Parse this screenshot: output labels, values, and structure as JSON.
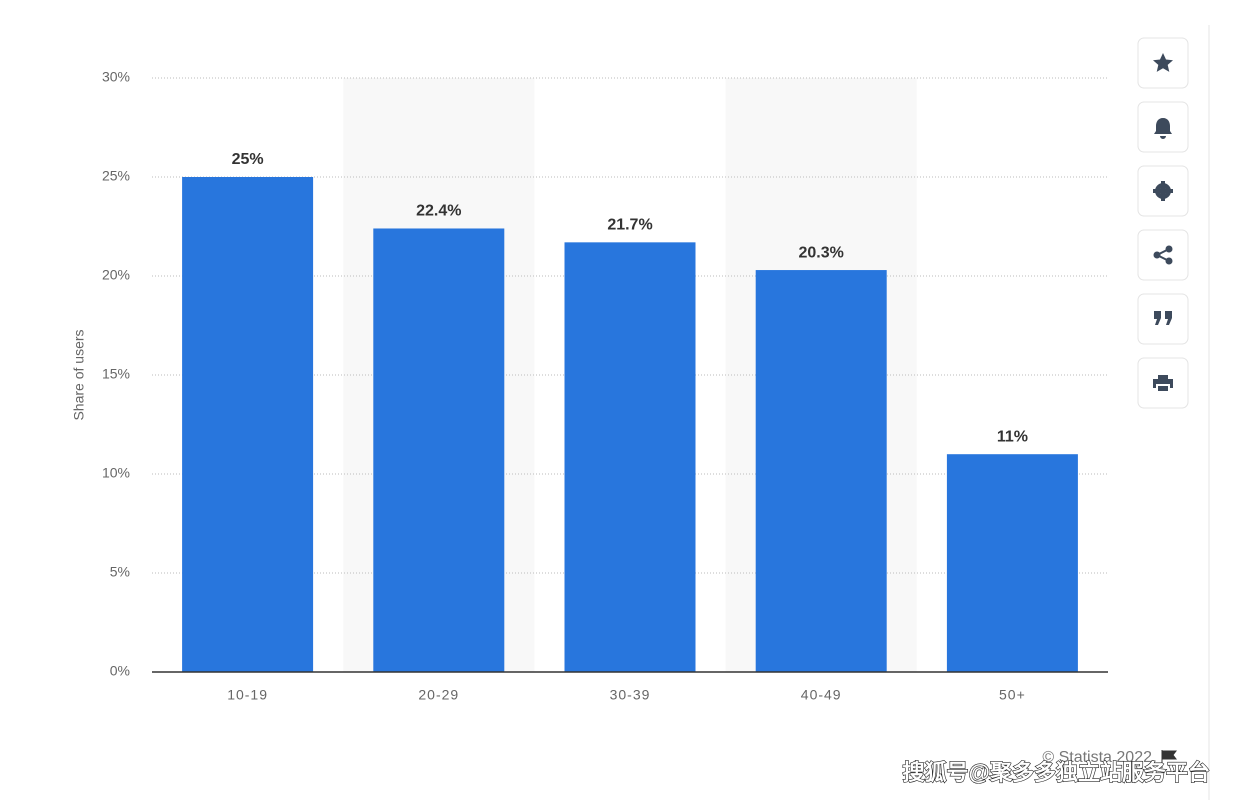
{
  "chart_data": {
    "type": "bar",
    "y_label": "Share of users",
    "categories": [
      "10-19",
      "20-29",
      "30-39",
      "40-49",
      "50+"
    ],
    "values": [
      25,
      22.4,
      21.7,
      20.3,
      11
    ],
    "value_labels": [
      "25%",
      "22.4%",
      "21.7%",
      "20.3%",
      "11%"
    ],
    "color": "#2876dd",
    "ylim": [
      0,
      30
    ],
    "yticks": [
      {
        "value": 0,
        "label": "0%"
      },
      {
        "value": 5,
        "label": "5%"
      },
      {
        "value": 10,
        "label": "10%"
      },
      {
        "value": 15,
        "label": "15%"
      },
      {
        "value": 20,
        "label": "20%"
      },
      {
        "value": 25,
        "label": "25%"
      },
      {
        "value": 30,
        "label": "30%"
      }
    ],
    "grid": true,
    "credit": "© Statista 2022",
    "watermark": "搜狐号@聚多多独立站服务平台"
  }
}
